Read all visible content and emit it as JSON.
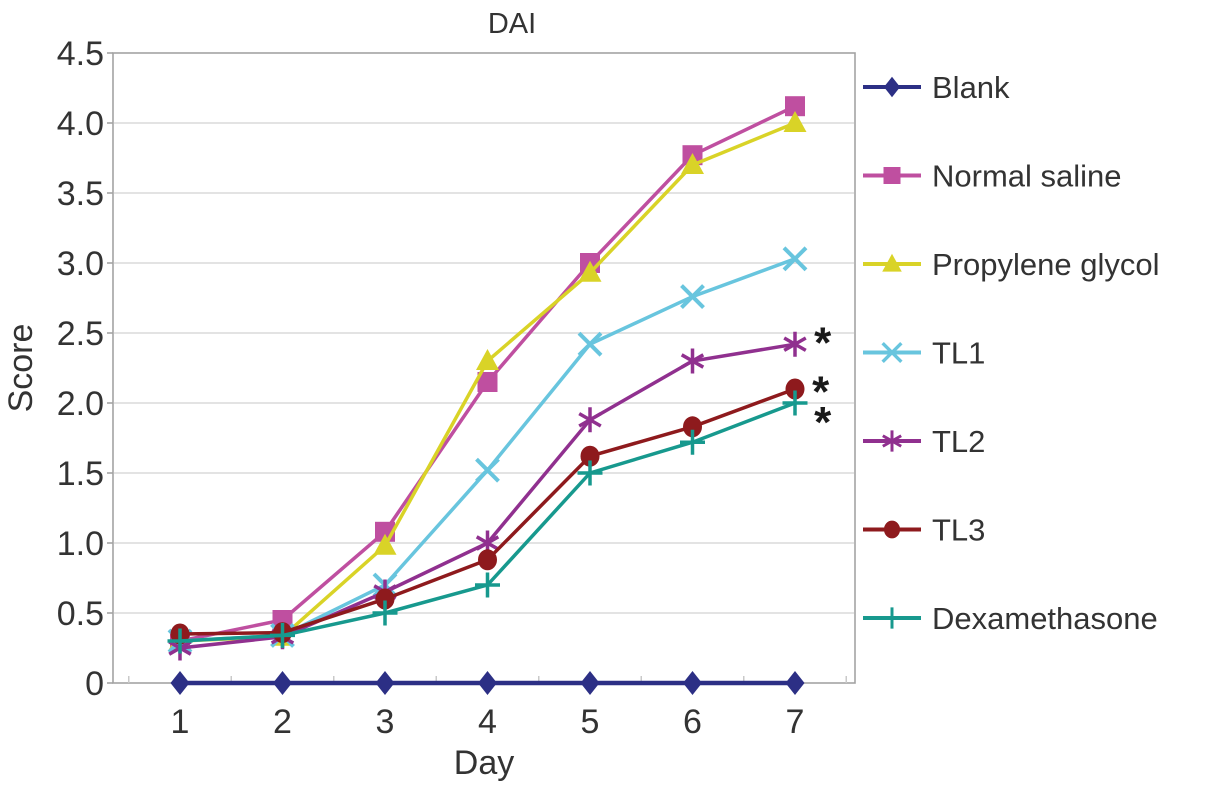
{
  "title": "DAI",
  "chart_data": {
    "type": "line",
    "title": "DAI",
    "xlabel": "Day",
    "ylabel": "Score",
    "x": [
      1,
      2,
      3,
      4,
      5,
      6,
      7
    ],
    "x_tick_labels": [
      "1",
      "2",
      "3",
      "4",
      "5",
      "6",
      "7"
    ],
    "y_tick_labels": [
      "4.5",
      "4.0",
      "3.5",
      "3.0",
      "2.5",
      "2.0",
      "1.5",
      "1.0",
      "0.5",
      "0"
    ],
    "ylim": [
      0,
      4.5
    ],
    "y_step": 0.5,
    "grid": "horizontal",
    "legend_position": "right",
    "series": [
      {
        "name": "Blank",
        "marker": "diamond",
        "color": "#2c2f85",
        "values": [
          0,
          0,
          0,
          0,
          0,
          0,
          0
        ]
      },
      {
        "name": "Normal saline",
        "marker": "square",
        "color": "#bf4fa0",
        "values": [
          0.3,
          0.45,
          1.08,
          2.15,
          3.0,
          3.77,
          4.12
        ]
      },
      {
        "name": "Propylene glycol",
        "marker": "triangle",
        "color": "#d9d327",
        "values": [
          0.3,
          0.33,
          0.98,
          2.3,
          2.93,
          3.7,
          4.0
        ]
      },
      {
        "name": "TL1",
        "marker": "x",
        "color": "#68c5de",
        "values": [
          0.3,
          0.34,
          0.7,
          1.52,
          2.42,
          2.76,
          3.03
        ]
      },
      {
        "name": "TL2",
        "marker": "asterisk",
        "color": "#90308f",
        "values": [
          0.25,
          0.33,
          0.65,
          1.0,
          1.88,
          2.3,
          2.42
        ]
      },
      {
        "name": "TL3",
        "marker": "circle",
        "color": "#8e1a1d",
        "values": [
          0.35,
          0.36,
          0.6,
          0.88,
          1.62,
          1.83,
          2.1
        ]
      },
      {
        "name": "Dexamethasone",
        "marker": "plus",
        "color": "#17998e",
        "values": [
          0.3,
          0.34,
          0.5,
          0.7,
          1.5,
          1.72,
          2.0
        ]
      }
    ],
    "annotations": [
      {
        "text": "*",
        "series": "TL2",
        "day": 7.27,
        "score": 2.44
      },
      {
        "text": "*",
        "series": "TL3",
        "day": 7.25,
        "score": 2.09
      },
      {
        "text": "*",
        "series": "Dexamethasone",
        "day": 7.27,
        "score": 1.87
      }
    ]
  },
  "colors": {
    "background": "#ffffff",
    "grid": "#dadada",
    "border": "#a3a3a3",
    "text": "#333333",
    "annotation": "#1a1a1a"
  }
}
